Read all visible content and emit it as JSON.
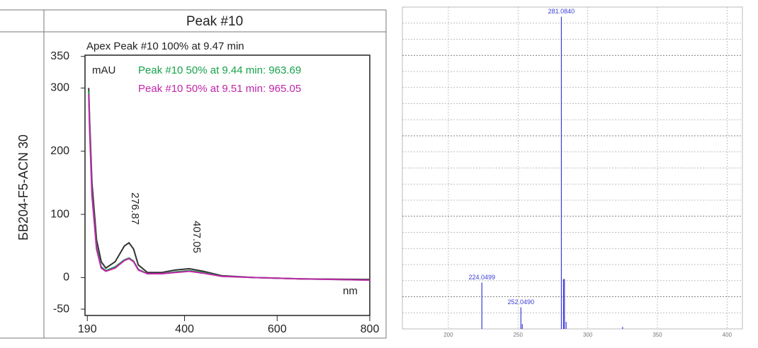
{
  "chart_data": [
    {
      "type": "line",
      "title": "Peak #10",
      "y_label": "БB204-F5-ACN 30",
      "y_unit": "mAU",
      "x_unit": "nm",
      "peak_labels": [
        "276.87",
        "407.05"
      ],
      "x": [
        193,
        195,
        200,
        210,
        220,
        230,
        250,
        270,
        280,
        290,
        300,
        320,
        350,
        380,
        410,
        440,
        480,
        550,
        650,
        800
      ],
      "series": [
        {
          "name": "Apex Peak #10 100% at 9.47 min",
          "color": "#333333",
          "values": [
            300,
            250,
            150,
            60,
            25,
            15,
            25,
            50,
            55,
            45,
            20,
            8,
            8,
            12,
            14,
            10,
            3,
            0,
            -2,
            -3
          ]
        },
        {
          "name": "Peak #10 50% at 9.44 min: 963.69",
          "color": "#16a34a",
          "values": [
            295,
            240,
            135,
            48,
            17,
            11,
            17,
            28,
            31,
            26,
            13,
            6,
            6,
            9,
            11,
            8,
            2,
            0,
            -2,
            -4
          ]
        },
        {
          "name": "Peak #10 50% at 9.51 min: 965.05",
          "color": "#c026a8",
          "values": [
            290,
            235,
            130,
            45,
            15,
            10,
            15,
            27,
            30,
            25,
            12,
            6,
            6,
            8,
            10,
            7,
            2,
            0,
            -2,
            -4
          ]
        }
      ],
      "xlim": [
        185,
        800
      ],
      "xticks": [
        190,
        400,
        600,
        800
      ],
      "ylim": [
        -60,
        352
      ],
      "yticks": [
        -50,
        0,
        100,
        200,
        300,
        350
      ]
    },
    {
      "type": "stem",
      "color": "#3b3bd6",
      "x": [
        224.0499,
        252.049,
        253.05,
        281.084,
        282.6,
        283.3,
        284.5,
        325.0
      ],
      "values": [
        14.4,
        6.7,
        1.5,
        97,
        15.5,
        15.5,
        2.2,
        0.6
      ],
      "labels": [
        "224.0499",
        "252.0490",
        null,
        "281.0840",
        null,
        null,
        null,
        null
      ],
      "xlim": [
        167,
        411
      ],
      "xticks": [
        200,
        250,
        300,
        350,
        400
      ],
      "ylim": [
        0,
        100
      ]
    }
  ]
}
